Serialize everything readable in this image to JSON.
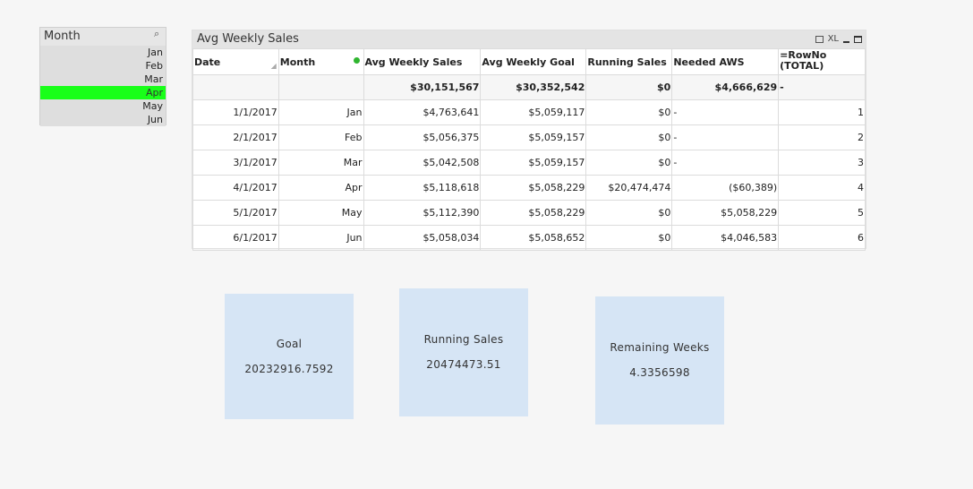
{
  "listbox": {
    "title": "Month",
    "items": [
      {
        "label": "Jan",
        "selected": false
      },
      {
        "label": "Feb",
        "selected": false
      },
      {
        "label": "Mar",
        "selected": false
      },
      {
        "label": "Apr",
        "selected": true
      },
      {
        "label": "May",
        "selected": false
      },
      {
        "label": "Jun",
        "selected": false
      }
    ],
    "selected_color": "#19ff19"
  },
  "table": {
    "title": "Avg Weekly Sales",
    "xl_label": "XL",
    "columns": [
      "Date",
      "Month",
      "Avg Weekly Sales",
      "Avg Weekly Goal",
      "Running Sales",
      "Needed AWS",
      "=RowNo\n(TOTAL)"
    ],
    "totals": [
      "",
      "",
      "$30,151,567",
      "$30,352,542",
      "$0",
      "$4,666,629",
      "-"
    ],
    "rows": [
      [
        "1/1/2017",
        "Jan",
        "$4,763,641",
        "$5,059,117",
        "$0",
        "-",
        "1"
      ],
      [
        "2/1/2017",
        "Feb",
        "$5,056,375",
        "$5,059,157",
        "$0",
        "-",
        "2"
      ],
      [
        "3/1/2017",
        "Mar",
        "$5,042,508",
        "$5,059,157",
        "$0",
        "-",
        "3"
      ],
      [
        "4/1/2017",
        "Apr",
        "$5,118,618",
        "$5,058,229",
        "$20,474,474",
        "($60,389)",
        "4"
      ],
      [
        "5/1/2017",
        "May",
        "$5,112,390",
        "$5,058,229",
        "$0",
        "$5,058,229",
        "5"
      ],
      [
        "6/1/2017",
        "Jun",
        "$5,058,034",
        "$5,058,652",
        "$0",
        "$4,046,583",
        "6"
      ]
    ]
  },
  "kpis": [
    {
      "label": "Goal",
      "value": "20232916.7592"
    },
    {
      "label": "Running Sales",
      "value": "20474473.51"
    },
    {
      "label": "Remaining Weeks",
      "value": "4.3356598"
    }
  ]
}
